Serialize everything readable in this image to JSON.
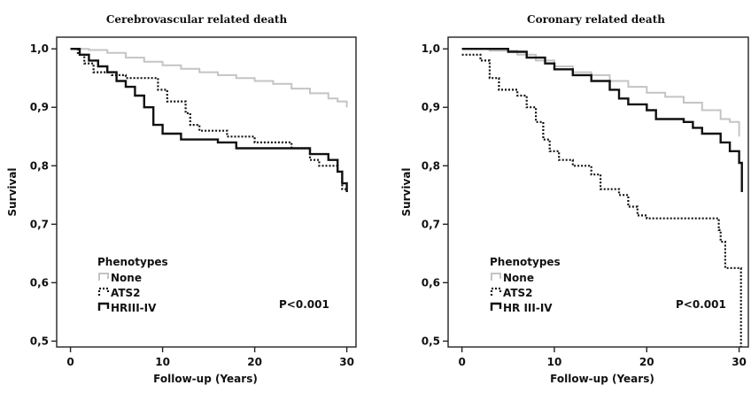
{
  "chart_data": [
    {
      "type": "line",
      "step": true,
      "title": "Cerebrovascular related death",
      "xlabel": "Follow-up (Years)",
      "ylabel": "Survival",
      "xlim": [
        -1.5,
        31
      ],
      "ylim": [
        0.49,
        1.02
      ],
      "xticks": [
        0,
        10,
        20,
        30
      ],
      "yticks": [
        0.5,
        0.6,
        0.7,
        0.8,
        0.9,
        1.0
      ],
      "xtick_labels": [
        "0",
        "10",
        "20",
        "30"
      ],
      "ytick_labels": [
        "0,5",
        "0,6",
        "0,7",
        "0,8",
        "0,9",
        "1,0"
      ],
      "legend_title": "Phenotypes",
      "legend_position": "bottom-left",
      "annotation": "P<0.001",
      "grid": false,
      "series": [
        {
          "name": "None",
          "style": "light-solid",
          "color": "#c4c4c4",
          "points": [
            [
              0,
              1.0
            ],
            [
              2,
              0.998
            ],
            [
              4,
              0.993
            ],
            [
              6,
              0.985
            ],
            [
              8,
              0.978
            ],
            [
              10,
              0.972
            ],
            [
              12,
              0.966
            ],
            [
              14,
              0.96
            ],
            [
              16,
              0.955
            ],
            [
              18,
              0.95
            ],
            [
              20,
              0.945
            ],
            [
              22,
              0.94
            ],
            [
              24,
              0.932
            ],
            [
              26,
              0.924
            ],
            [
              28,
              0.915
            ],
            [
              29,
              0.91
            ],
            [
              30,
              0.9
            ]
          ]
        },
        {
          "name": "ATS2",
          "style": "dotted",
          "color": "#111111",
          "points": [
            [
              0,
              1.0
            ],
            [
              0.8,
              0.99
            ],
            [
              1.5,
              0.975
            ],
            [
              2.5,
              0.96
            ],
            [
              4.5,
              0.955
            ],
            [
              6,
              0.95
            ],
            [
              9,
              0.95
            ],
            [
              9.5,
              0.93
            ],
            [
              10.5,
              0.91
            ],
            [
              12,
              0.91
            ],
            [
              12.5,
              0.89
            ],
            [
              13,
              0.87
            ],
            [
              14,
              0.86
            ],
            [
              17,
              0.85
            ],
            [
              20,
              0.84
            ],
            [
              24,
              0.83
            ],
            [
              26,
              0.81
            ],
            [
              27,
              0.8
            ],
            [
              29,
              0.79
            ],
            [
              29.5,
              0.76
            ],
            [
              30,
              0.755
            ]
          ]
        },
        {
          "name": "HRIII-IV",
          "style": "solid",
          "color": "#111111",
          "points": [
            [
              0,
              1.0
            ],
            [
              1,
              0.99
            ],
            [
              2,
              0.98
            ],
            [
              3,
              0.97
            ],
            [
              4,
              0.96
            ],
            [
              5,
              0.945
            ],
            [
              6,
              0.935
            ],
            [
              7,
              0.92
            ],
            [
              8,
              0.9
            ],
            [
              9,
              0.87
            ],
            [
              10,
              0.855
            ],
            [
              12,
              0.845
            ],
            [
              16,
              0.84
            ],
            [
              18,
              0.83
            ],
            [
              24,
              0.83
            ],
            [
              26,
              0.82
            ],
            [
              28,
              0.81
            ],
            [
              29,
              0.79
            ],
            [
              29.5,
              0.77
            ],
            [
              30,
              0.755
            ]
          ]
        }
      ]
    },
    {
      "type": "line",
      "step": true,
      "title": "Coronary related death",
      "xlabel": "Follow-up (Years)",
      "ylabel": "Survival",
      "xlim": [
        -1.5,
        31
      ],
      "ylim": [
        0.49,
        1.02
      ],
      "xticks": [
        0,
        10,
        20,
        30
      ],
      "yticks": [
        0.5,
        0.6,
        0.7,
        0.8,
        0.9,
        1.0
      ],
      "xtick_labels": [
        "0",
        "10",
        "20",
        "30"
      ],
      "ytick_labels": [
        "0,5",
        "0,6",
        "0,7",
        "0,8",
        "0,9",
        "1,0"
      ],
      "legend_title": "Phenotypes",
      "legend_position": "bottom-left",
      "annotation": "P<0.001",
      "grid": false,
      "series": [
        {
          "name": "None",
          "style": "light-solid",
          "color": "#c4c4c4",
          "points": [
            [
              0,
              1.0
            ],
            [
              3,
              0.997
            ],
            [
              6,
              0.99
            ],
            [
              8,
              0.98
            ],
            [
              10,
              0.97
            ],
            [
              12,
              0.96
            ],
            [
              14,
              0.955
            ],
            [
              16,
              0.945
            ],
            [
              18,
              0.935
            ],
            [
              20,
              0.925
            ],
            [
              22,
              0.918
            ],
            [
              24,
              0.908
            ],
            [
              26,
              0.895
            ],
            [
              28,
              0.88
            ],
            [
              29,
              0.875
            ],
            [
              30,
              0.85
            ]
          ]
        },
        {
          "name": "ATS2",
          "style": "dotted",
          "color": "#111111",
          "points": [
            [
              0,
              0.99
            ],
            [
              2,
              0.98
            ],
            [
              3,
              0.95
            ],
            [
              4,
              0.93
            ],
            [
              6,
              0.92
            ],
            [
              7,
              0.9
            ],
            [
              8,
              0.875
            ],
            [
              8.8,
              0.845
            ],
            [
              9.5,
              0.825
            ],
            [
              10.5,
              0.81
            ],
            [
              12,
              0.8
            ],
            [
              14,
              0.785
            ],
            [
              15,
              0.76
            ],
            [
              17,
              0.75
            ],
            [
              18,
              0.73
            ],
            [
              19,
              0.715
            ],
            [
              20,
              0.71
            ],
            [
              24,
              0.71
            ],
            [
              27,
              0.71
            ],
            [
              27.8,
              0.69
            ],
            [
              28,
              0.67
            ],
            [
              28.5,
              0.625
            ],
            [
              30,
              0.625
            ],
            [
              30.2,
              0.49
            ]
          ]
        },
        {
          "name": "HR III-IV",
          "style": "solid",
          "color": "#111111",
          "points": [
            [
              0,
              1.0
            ],
            [
              5,
              0.995
            ],
            [
              7,
              0.985
            ],
            [
              9,
              0.975
            ],
            [
              10,
              0.965
            ],
            [
              12,
              0.955
            ],
            [
              14,
              0.945
            ],
            [
              16,
              0.93
            ],
            [
              17,
              0.915
            ],
            [
              18,
              0.905
            ],
            [
              20,
              0.895
            ],
            [
              21,
              0.88
            ],
            [
              24,
              0.875
            ],
            [
              25,
              0.865
            ],
            [
              26,
              0.855
            ],
            [
              28,
              0.84
            ],
            [
              29,
              0.825
            ],
            [
              30,
              0.805
            ],
            [
              30.3,
              0.755
            ]
          ]
        }
      ]
    }
  ]
}
